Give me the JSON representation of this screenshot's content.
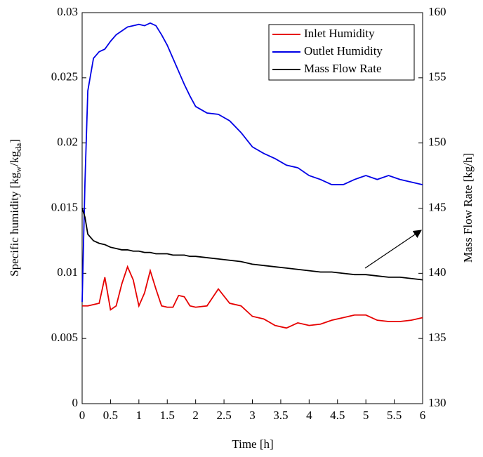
{
  "chart_data": {
    "type": "line",
    "x_label": "Time [h]",
    "y_label_parts": [
      "Specific humidity [kg",
      "w",
      "/kg",
      "da",
      "]"
    ],
    "y2_label": "Mass Flow Rate [kg/h]",
    "x": [
      0,
      0.05,
      0.1,
      0.2,
      0.3,
      0.4,
      0.5,
      0.6,
      0.7,
      0.8,
      0.9,
      1.0,
      1.1,
      1.2,
      1.3,
      1.4,
      1.5,
      1.6,
      1.7,
      1.8,
      1.9,
      2.0,
      2.2,
      2.4,
      2.6,
      2.8,
      3.0,
      3.2,
      3.4,
      3.6,
      3.8,
      4.0,
      4.2,
      4.4,
      4.6,
      4.8,
      5.0,
      5.2,
      5.4,
      5.6,
      5.8,
      6.0
    ],
    "series": [
      {
        "name": "Inlet Humidity",
        "color": "#e60000",
        "values": [
          0.0075,
          0.0075,
          0.0075,
          0.0076,
          0.0077,
          0.0097,
          0.0072,
          0.0075,
          0.0092,
          0.0105,
          0.0095,
          0.0075,
          0.0085,
          0.0102,
          0.0088,
          0.0075,
          0.0074,
          0.0074,
          0.0083,
          0.0082,
          0.0075,
          0.0074,
          0.0075,
          0.0088,
          0.0077,
          0.0075,
          0.0067,
          0.0065,
          0.006,
          0.0058,
          0.0062,
          0.006,
          0.0061,
          0.0064,
          0.0066,
          0.0068,
          0.0068,
          0.0064,
          0.0063,
          0.0063,
          0.0064,
          0.0066
        ]
      },
      {
        "name": "Outlet Humidity",
        "color": "#0000e6",
        "values": [
          0.0078,
          0.017,
          0.024,
          0.0265,
          0.027,
          0.0272,
          0.0278,
          0.0283,
          0.0286,
          0.0289,
          0.029,
          0.0291,
          0.029,
          0.0292,
          0.029,
          0.0283,
          0.0275,
          0.0265,
          0.0255,
          0.0245,
          0.0236,
          0.0228,
          0.0223,
          0.0222,
          0.0217,
          0.0208,
          0.0197,
          0.0192,
          0.0188,
          0.0183,
          0.0181,
          0.0175,
          0.0172,
          0.0168,
          0.0168,
          0.0172,
          0.0175,
          0.0172,
          0.0175,
          0.0172,
          0.017,
          0.0168
        ]
      },
      {
        "name": "Mass Flow Rate",
        "color": "#000000",
        "axis": "y2",
        "values": [
          145,
          144.3,
          143,
          142.5,
          142.3,
          142.2,
          142.0,
          141.9,
          141.8,
          141.8,
          141.7,
          141.7,
          141.6,
          141.6,
          141.5,
          141.5,
          141.5,
          141.4,
          141.4,
          141.4,
          141.3,
          141.3,
          141.2,
          141.1,
          141.0,
          140.9,
          140.7,
          140.6,
          140.5,
          140.4,
          140.3,
          140.2,
          140.1,
          140.1,
          140.0,
          139.9,
          139.9,
          139.8,
          139.7,
          139.7,
          139.6,
          139.5
        ]
      }
    ],
    "xlim": [
      0,
      6
    ],
    "xticks": [
      0,
      0.5,
      1,
      1.5,
      2,
      2.5,
      3,
      3.5,
      4,
      4.5,
      5,
      5.5,
      6
    ],
    "ylim": [
      0,
      0.03
    ],
    "yticks": [
      0,
      0.005,
      0.01,
      0.015,
      0.02,
      0.025,
      0.03
    ],
    "y2lim": [
      130,
      160
    ],
    "y2ticks": [
      130,
      135,
      140,
      145,
      150,
      155,
      160
    ],
    "grid": false,
    "legend": "upper right"
  }
}
